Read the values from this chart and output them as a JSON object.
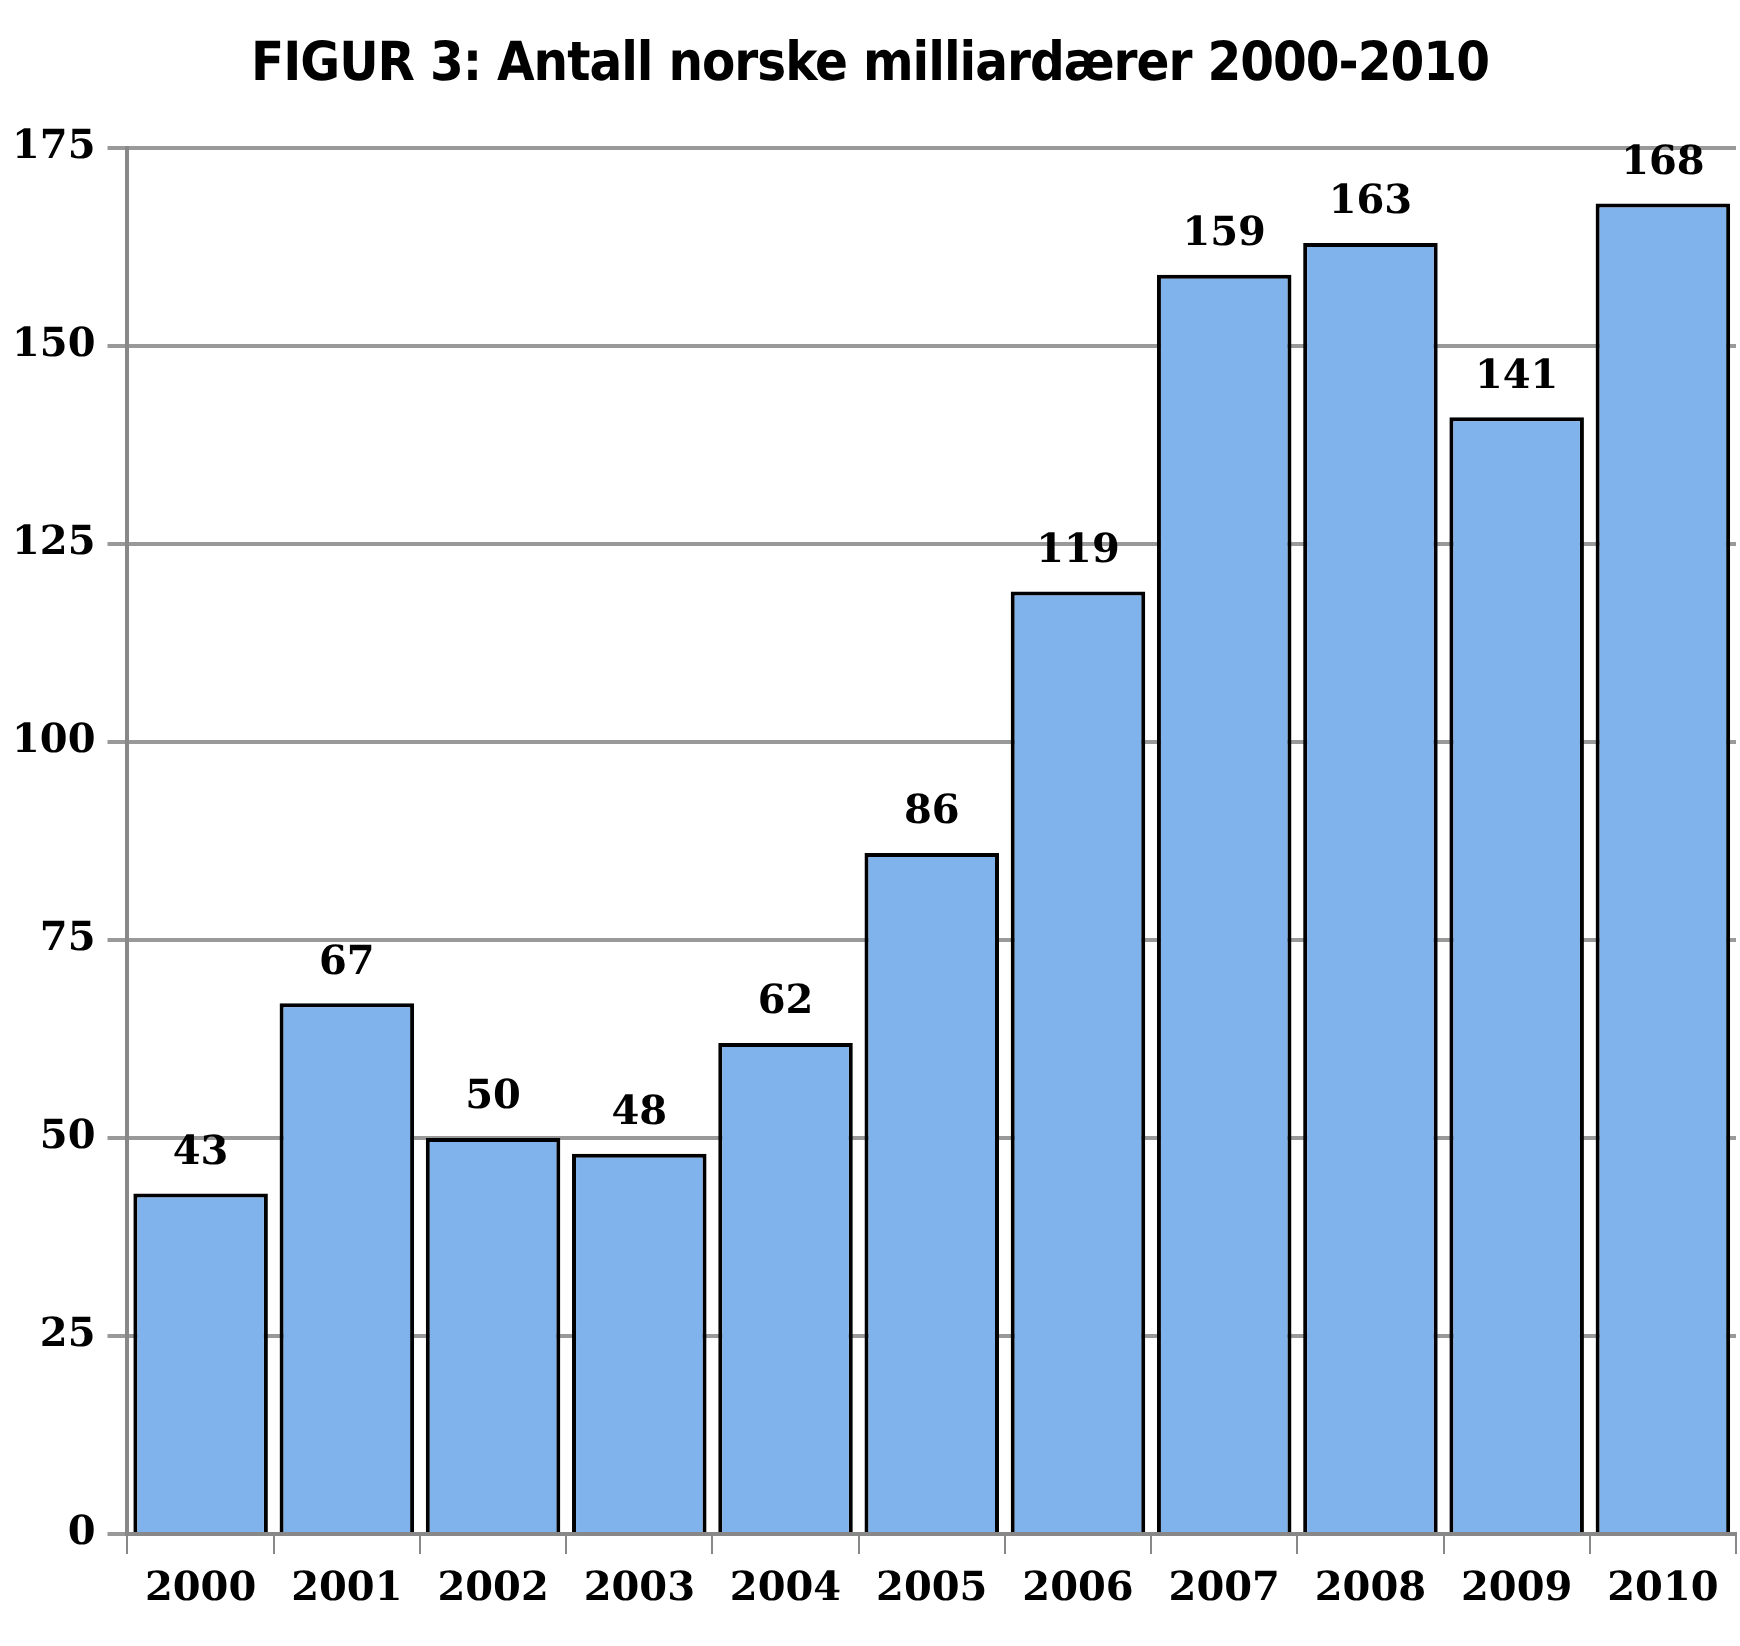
{
  "chart_data": {
    "type": "bar",
    "title": "FIGUR 3: Antall norske milliardærer 2000-2010",
    "categories": [
      "2000",
      "2001",
      "2002",
      "2003",
      "2004",
      "2005",
      "2006",
      "2007",
      "2008",
      "2009",
      "2010"
    ],
    "values": [
      43,
      67,
      50,
      48,
      62,
      86,
      119,
      159,
      163,
      141,
      168
    ],
    "color": "#80b2ec",
    "ylim": [
      0,
      175
    ],
    "yticks": [
      0,
      25,
      50,
      75,
      100,
      125,
      150,
      175
    ],
    "grid": "y",
    "data_labels": true
  }
}
